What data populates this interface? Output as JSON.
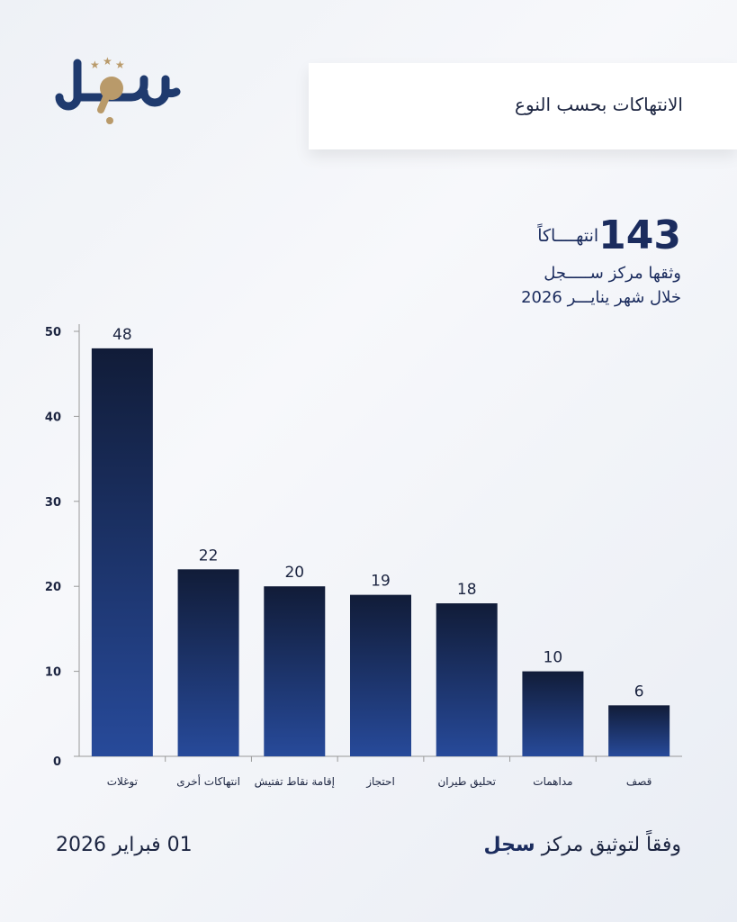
{
  "brand": {
    "logo_text": "سجل",
    "navy": "#1f3a6e",
    "gold": "#b99a6a"
  },
  "header": {
    "title": "الانتهاكات بحسب النوع"
  },
  "summary": {
    "total": "143",
    "unit": "انتهــــاكاً",
    "line1": "وثقها مركز ســـــجل",
    "line2": "خلال شهر ينايـــر 2026"
  },
  "chart_data": {
    "type": "bar",
    "title": "الانتهاكات بحسب النوع",
    "categories": [
      "توغلات",
      "انتهاكات أخرى",
      "إقامة نقاط تفتيش",
      "احتجاز",
      "تحليق طيران",
      "مداهمات",
      "قصف"
    ],
    "values": [
      48,
      22,
      20,
      19,
      18,
      10,
      6
    ],
    "ylim": [
      0,
      50
    ],
    "yticks": [
      0,
      10,
      20,
      30,
      40,
      50
    ],
    "xlabel": "",
    "ylabel": "",
    "grid": false,
    "colors": {
      "top": "#111c38",
      "bottom": "#274a9a"
    }
  },
  "footer": {
    "date": "01 فبراير 2026",
    "source_prefix": "وفقاً لتوثيق مركز",
    "source_name": "سجل"
  }
}
